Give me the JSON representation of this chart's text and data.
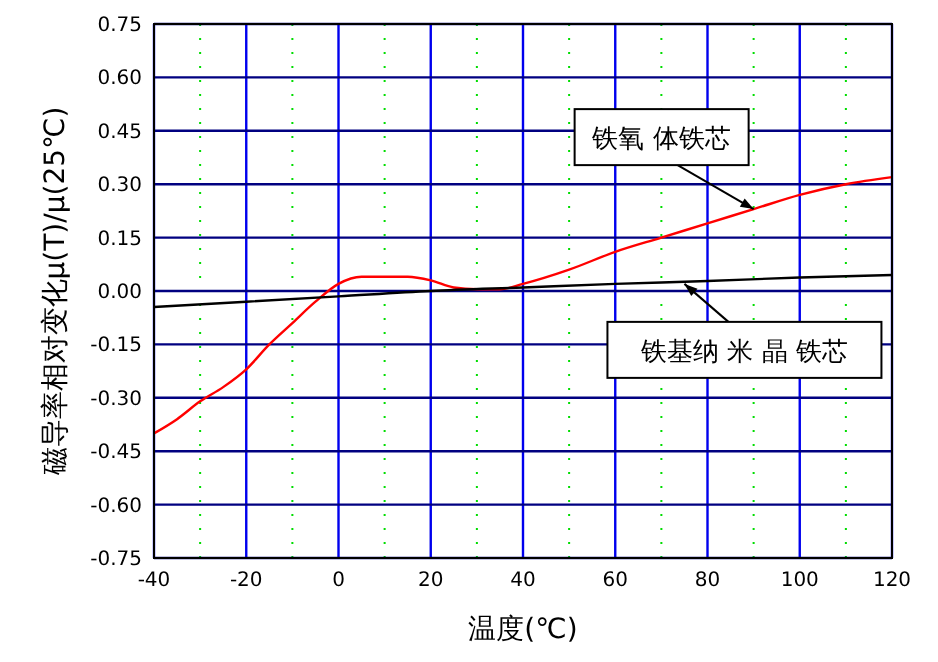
{
  "chart_data": {
    "type": "line",
    "xlabel": "温度(℃)",
    "ylabel": "磁导率相对变化μ(T)/μ(25℃)",
    "xlim": [
      -40,
      120
    ],
    "ylim": [
      -0.75,
      0.75
    ],
    "xticks": [
      -40,
      {
        "value": -30,
        "label": null
      },
      -20,
      {
        "value": -10,
        "label": null
      },
      0,
      {
        "value": 10,
        "label": null
      },
      20,
      {
        "value": 30,
        "label": null
      },
      40,
      {
        "value": 50,
        "label": null
      },
      60,
      {
        "value": 70,
        "label": null
      },
      80,
      {
        "value": 90,
        "label": null
      },
      100,
      {
        "value": 110,
        "label": null
      },
      120
    ],
    "yticks": [
      {
        "value": 0.75,
        "label": "0.75"
      },
      {
        "value": 0.6,
        "label": "0.60"
      },
      {
        "value": 0.45,
        "label": "0.45"
      },
      {
        "value": 0.3,
        "label": "0.30"
      },
      {
        "value": 0.15,
        "label": "0.15"
      },
      {
        "value": 0,
        "label": "0.00"
      },
      {
        "value": -0.15,
        "label": "-0.15"
      },
      {
        "value": -0.3,
        "label": "-0.30"
      },
      {
        "value": -0.45,
        "label": "-0.45"
      },
      {
        "value": -0.6,
        "label": "-0.60"
      },
      {
        "value": -0.75,
        "label": "-0.75"
      }
    ],
    "grid": true,
    "marker": "none",
    "series": [
      {
        "color": "#ff0000",
        "x": [
          -40,
          -35,
          -30,
          -25,
          -20,
          -15,
          -10,
          -5,
          0,
          5,
          10,
          15,
          20,
          25,
          30,
          35,
          40,
          50,
          60,
          70,
          80,
          90,
          100,
          110,
          120
        ],
        "values": [
          -0.4,
          -0.36,
          -0.31,
          -0.27,
          -0.22,
          -0.15,
          -0.09,
          -0.03,
          0.02,
          0.04,
          0.04,
          0.04,
          0.03,
          0.01,
          0.005,
          0.005,
          0.02,
          0.06,
          0.11,
          0.15,
          0.19,
          0.23,
          0.27,
          0.3,
          0.32
        ]
      },
      {
        "color": "#000000",
        "x": [
          -40,
          -20,
          0,
          20,
          40,
          60,
          80,
          100,
          120
        ],
        "values": [
          -0.045,
          -0.03,
          -0.015,
          0,
          0.01,
          0.02,
          0.028,
          0.038,
          0.045
        ]
      }
    ],
    "annotations": [
      {
        "text": "铁氧 体铁芯",
        "x": 90,
        "y": 0.23
      },
      {
        "text": "铁基纳 米 晶 铁芯",
        "x": 75,
        "y": 0.02
      }
    ]
  }
}
